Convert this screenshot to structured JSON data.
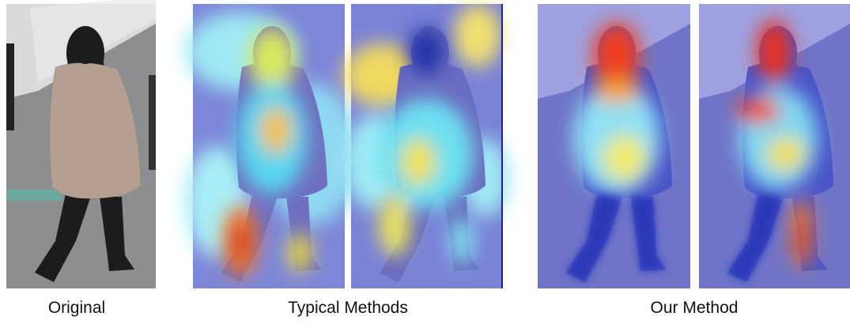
{
  "captions": [
    "Original",
    "Typical Methods",
    "Our Method"
  ]
}
